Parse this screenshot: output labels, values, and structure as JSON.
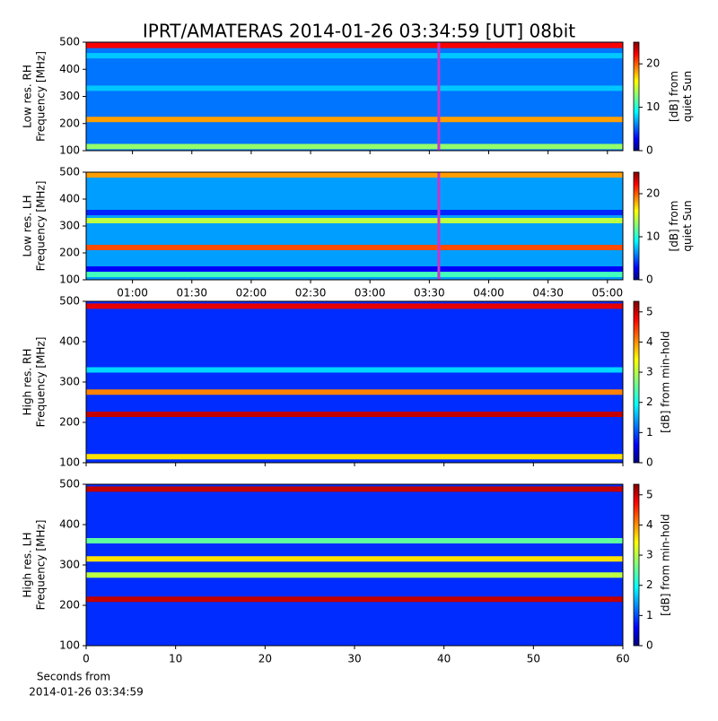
{
  "chart_data": [
    {
      "type": "heatmap",
      "title": "IPRT/AMATERAS 2014-01-26 03:34:59 [UT]   08bit",
      "ylabel": [
        "Low res. RH",
        "Frequency [MHz]"
      ],
      "xlim": [
        0.61,
        5.13
      ],
      "ylim": [
        100,
        500
      ],
      "yticks": [
        100,
        200,
        300,
        400,
        500
      ],
      "clabel": [
        "[dB] from",
        "quiet Sun"
      ],
      "clim": [
        0,
        25
      ],
      "cticks": [
        0,
        10,
        20
      ],
      "background": 6,
      "marker_x": 3.58,
      "marker_color": "#cc33cc",
      "bands": {
        "y": [
          488,
          450,
          330,
          215,
          115
        ],
        "values": [
          22,
          8,
          8,
          18,
          13
        ]
      }
    },
    {
      "type": "heatmap",
      "ylabel": [
        "Low res. LH",
        "Frequency [MHz]"
      ],
      "xlim": [
        0.61,
        5.13
      ],
      "ylim": [
        100,
        500
      ],
      "yticks": [
        100,
        200,
        300,
        400,
        500
      ],
      "xticks": [
        {
          "value": 1,
          "label": "01:00"
        },
        {
          "value": 1.5,
          "label": "01:30"
        },
        {
          "value": 2,
          "label": "02:00"
        },
        {
          "value": 2.5,
          "label": "02:30"
        },
        {
          "value": 3,
          "label": "03:00"
        },
        {
          "value": 3.5,
          "label": "03:30"
        },
        {
          "value": 4,
          "label": "04:00"
        },
        {
          "value": 4.5,
          "label": "04:30"
        },
        {
          "value": 5,
          "label": "05:00"
        }
      ],
      "clabel": [
        "[dB] from",
        "quiet Sun"
      ],
      "clim": [
        0,
        25
      ],
      "cticks": [
        0,
        10,
        20
      ],
      "background": 7,
      "marker_x": 3.58,
      "marker_color": "#cc33cc",
      "bands": {
        "y": [
          490,
          350,
          320,
          220,
          140,
          120
        ],
        "values": [
          18,
          4,
          14,
          20,
          3,
          11
        ]
      }
    },
    {
      "type": "heatmap",
      "ylabel": [
        "High res. RH",
        "Frequency [MHz]"
      ],
      "xlim": [
        0,
        60
      ],
      "ylim": [
        100,
        500
      ],
      "yticks": [
        100,
        200,
        300,
        400,
        500
      ],
      "clabel": [
        "[dB] from min-hold"
      ],
      "clim": [
        0,
        5.35
      ],
      "cticks": [
        0,
        1,
        2,
        3,
        4,
        5
      ],
      "background": 0.9,
      "bands": {
        "y": [
          488,
          330,
          275,
          220,
          115
        ],
        "values": [
          4.8,
          1.8,
          4,
          5,
          3.5
        ]
      }
    },
    {
      "type": "heatmap",
      "ylabel": [
        "High res. LH",
        "Frequency [MHz]"
      ],
      "xlim": [
        0,
        60
      ],
      "ylim": [
        100,
        500
      ],
      "yticks": [
        100,
        200,
        300,
        400,
        500
      ],
      "xticks": [
        0,
        10,
        20,
        30,
        40,
        50,
        60
      ],
      "xlabel": [
        "Seconds from",
        "2014-01-26 03:34:59"
      ],
      "clabel": [
        "[dB] from min-hold"
      ],
      "clim": [
        0,
        5.35
      ],
      "cticks": [
        0,
        1,
        2,
        3,
        4,
        5
      ],
      "background": 0.9,
      "bands": {
        "y": [
          488,
          360,
          315,
          275,
          215
        ],
        "values": [
          5,
          2.5,
          3.5,
          3,
          5
        ]
      }
    }
  ]
}
